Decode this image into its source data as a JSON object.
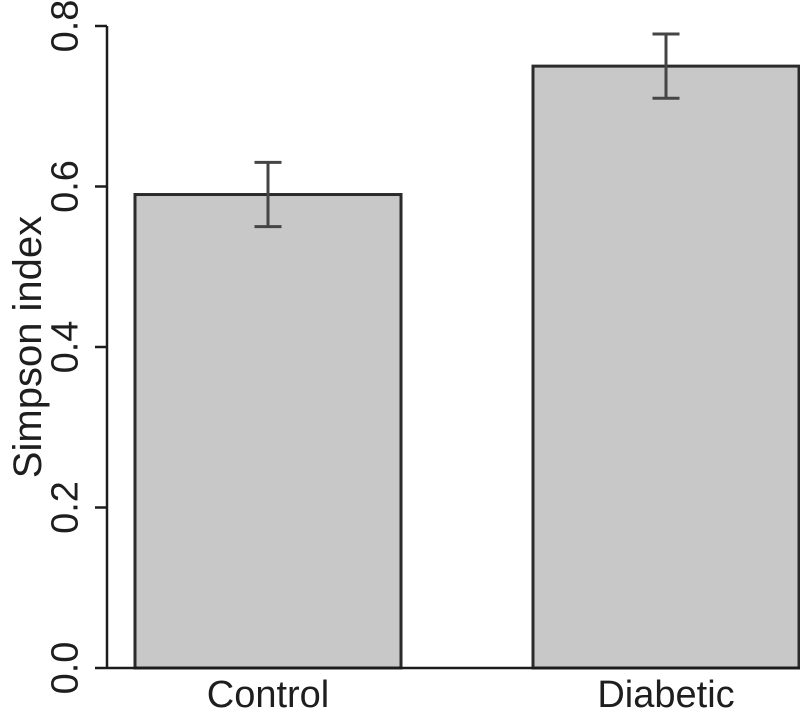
{
  "figure": {
    "background": "#ffffff"
  },
  "chart_data": {
    "type": "bar",
    "title": "",
    "xlabel": "",
    "ylabel": "Simpson index",
    "categories": [
      "Control",
      "Diabetic"
    ],
    "values": [
      0.59,
      0.75
    ],
    "error_upper": [
      0.63,
      0.79
    ],
    "error_lower": [
      0.55,
      0.71
    ],
    "ylim": [
      0.0,
      0.8
    ],
    "yticks": [
      0.0,
      0.2,
      0.4,
      0.6,
      0.8
    ],
    "ytick_labels": [
      "0.0",
      "0.2",
      "0.4",
      "0.6",
      "0.8"
    ],
    "grid": false,
    "legend": false,
    "colors": {
      "bar_fill": "#c8c8c9",
      "bar_border": "#2b2b2b",
      "error_bar": "#454545",
      "axis": "#1c1c1c",
      "text": "#1e1e1e",
      "background": "#ffffff"
    }
  }
}
